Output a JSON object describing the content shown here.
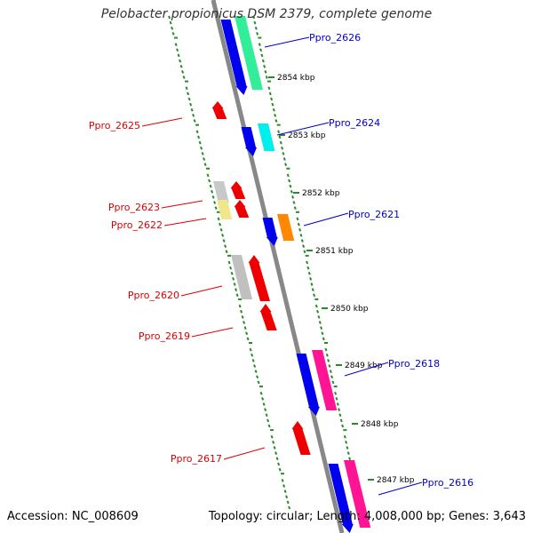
{
  "title": "Pelobacter propionicus DSM 2379, complete genome",
  "accession_label": "Accession: NC_008609",
  "summary_label": "Topology: circular; Length: 4,008,000 bp; Genes: 3,643",
  "colors": {
    "backbone": "#888888",
    "tick": "#2a8a2a",
    "forward_label": "#0000cc",
    "reverse_label": "#dd0000"
  },
  "ticks": [
    {
      "label": "2854 kbp"
    },
    {
      "label": "2853 kbp"
    },
    {
      "label": "2852 kbp"
    },
    {
      "label": "2851 kbp"
    },
    {
      "label": "2850 kbp"
    },
    {
      "label": "2849 kbp"
    },
    {
      "label": "2848 kbp"
    },
    {
      "label": "2847 kbp"
    }
  ],
  "forward_genes": [
    {
      "label": "Ppro_2626",
      "color": "#0000ee",
      "partner": "#33ee99"
    },
    {
      "label": "Ppro_2624",
      "color": "#0000ee",
      "partner": "#00eeee"
    },
    {
      "label": "Ppro_2621",
      "color": "#0000ee",
      "partner": "#ff8800"
    },
    {
      "label": "Ppro_2618",
      "color": "#0000ee",
      "partner": "#ff1493"
    },
    {
      "label": "Ppro_2616",
      "color": "#0000ee",
      "partner": "#ff1493"
    }
  ],
  "reverse_genes": [
    {
      "label": "Ppro_2625",
      "color": "#ee0000"
    },
    {
      "label": "Ppro_2623",
      "color": "#ee0000",
      "partner": "#c8c8c8"
    },
    {
      "label": "Ppro_2622",
      "color": "#ee0000",
      "partner": "#f0e68c"
    },
    {
      "label": "Ppro_2620",
      "color": "#ee0000",
      "partner": "#c0c0c0"
    },
    {
      "label": "Ppro_2619",
      "color": "#ee0000"
    },
    {
      "label": "Ppro_2617",
      "color": "#ee0000"
    }
  ]
}
